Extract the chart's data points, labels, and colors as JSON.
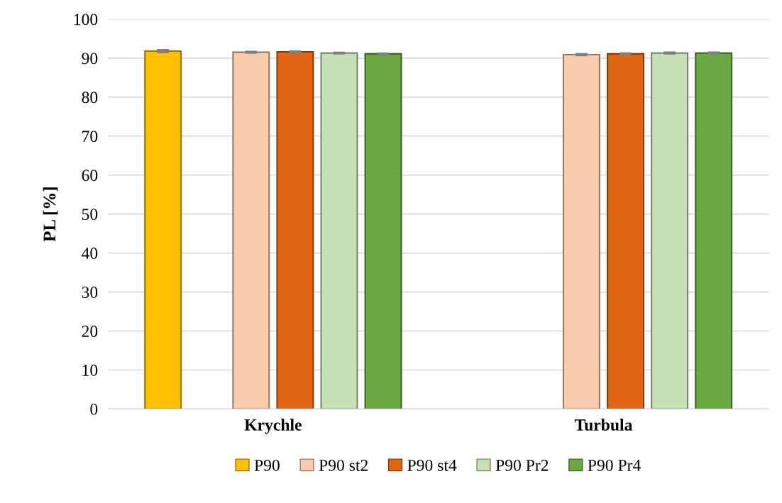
{
  "chart_data": {
    "type": "bar",
    "ylabel": "PL [%]",
    "categories": [
      "Krychle",
      "Turbula"
    ],
    "series": [
      {
        "name": "P90",
        "color": "#ffc000",
        "values": [
          91.8,
          null
        ],
        "errors": [
          0.3,
          null
        ]
      },
      {
        "values": [
          null,
          null
        ]
      },
      {
        "name": "P90 st2",
        "color": "#f8cbad",
        "values": [
          91.5,
          90.9
        ],
        "errors": [
          0.15,
          0.15
        ]
      },
      {
        "name": "P90 st4",
        "color": "#e06614",
        "values": [
          91.6,
          91.1
        ],
        "errors": [
          0.15,
          0.15
        ]
      },
      {
        "name": "P90 Pr2",
        "color": "#c5e0b4",
        "values": [
          91.3,
          91.3
        ],
        "errors": [
          0.1,
          0.15
        ]
      },
      {
        "name": "P90 Pr4",
        "color": "#6aa842",
        "values": [
          91.1,
          91.3
        ],
        "errors": [
          0.1,
          0.15
        ]
      }
    ],
    "ylim": [
      0,
      100
    ],
    "yticks": [
      0,
      10,
      20,
      30,
      40,
      50,
      60,
      70,
      80,
      90,
      100
    ],
    "grid": "y",
    "legend": "bottom"
  }
}
